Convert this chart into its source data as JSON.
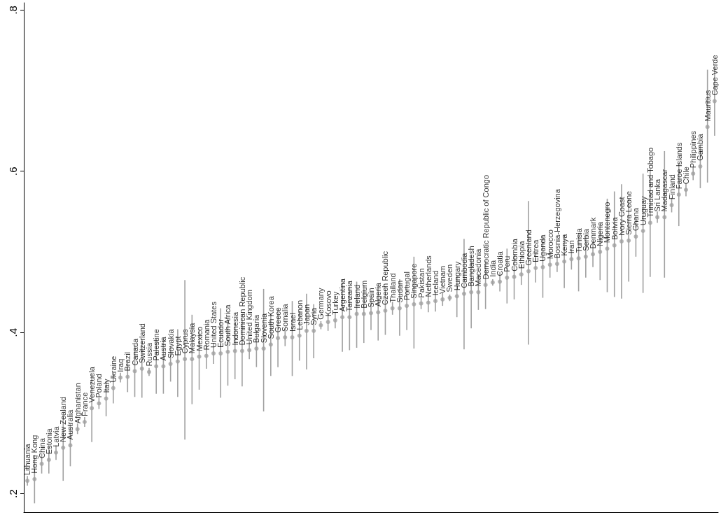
{
  "chart_data": {
    "type": "scatter",
    "categories": [
      "Lithuania",
      "Hong Kong",
      "China",
      "Estonia",
      "Latvia",
      "New Zealand",
      "Australia",
      "Afghanistan",
      "France",
      "Venezuela",
      "Poland",
      "Italy",
      "Ukraine",
      "Iraq",
      "Brazil",
      "Canada",
      "Switzerland",
      "Russia",
      "Palestine",
      "Austria",
      "Slovakia",
      "Egypt",
      "Cyprus",
      "Malaysia",
      "Mexico",
      "Romania",
      "United States",
      "Ecuador",
      "South Africa",
      "Indonesia",
      "Dominican Republic",
      "United Kingdom",
      "Bulgaria",
      "Slovenia",
      "South Korea",
      "Greece",
      "Somalia",
      "Israel",
      "Lebanon",
      "Japan",
      "Syria",
      "Germany",
      "Kosovo",
      "Turkey",
      "Argentina",
      "Tanzania",
      "Ireland",
      "Belgium",
      "Spain",
      "Algeria",
      "Czech Republic",
      "Thailand",
      "Sudan",
      "Portugal",
      "Singapore",
      "Pakistan",
      "Netherlands",
      "Iceland",
      "Vietnam",
      "Sweden",
      "Hungary",
      "Cambodia",
      "Bangladesh",
      "Macedonia",
      "Democratic Republic of Congo",
      "India",
      "Croatia",
      "Peru",
      "Colombia",
      "Ethiopia",
      "Greenland",
      "Eritrea",
      "Uganda",
      "Morocco",
      "Bosnia-Herzegovina",
      "Kenya",
      "Iran",
      "Tunisia",
      "Serbia",
      "Denmark",
      "Nigeria",
      "Montenegro",
      "Bolivia",
      "Ivory Coast",
      "Sierra Leone",
      "Ghana",
      "Uruguay",
      "Trinidad and Tobago",
      "Sri Lanka",
      "Madagascar",
      "Finland",
      "Faroe Islands",
      "Chile",
      "Philippines",
      "Gambia",
      "Mauritius",
      "Cape Verde"
    ],
    "series": [
      {
        "color": "#a0a0a0",
        "values": [
          0.216,
          0.218,
          0.237,
          0.242,
          0.251,
          0.257,
          0.26,
          0.28,
          0.289,
          0.306,
          0.312,
          0.318,
          0.331,
          0.344,
          0.345,
          0.352,
          0.355,
          0.351,
          0.358,
          0.358,
          0.361,
          0.364,
          0.367,
          0.367,
          0.37,
          0.371,
          0.374,
          0.374,
          0.376,
          0.377,
          0.377,
          0.378,
          0.38,
          0.38,
          0.385,
          0.393,
          0.394,
          0.394,
          0.396,
          0.402,
          0.402,
          0.409,
          0.413,
          0.415,
          0.419,
          0.419,
          0.423,
          0.423,
          0.424,
          0.425,
          0.427,
          0.43,
          0.43,
          0.433,
          0.435,
          0.436,
          0.437,
          0.439,
          0.441,
          0.443,
          0.445,
          0.448,
          0.45,
          0.45,
          0.459,
          0.462,
          0.463,
          0.468,
          0.469,
          0.472,
          0.476,
          0.48,
          0.481,
          0.484,
          0.485,
          0.488,
          0.491,
          0.492,
          0.494,
          0.497,
          0.5,
          0.504,
          0.508,
          0.513,
          0.514,
          0.519,
          0.526,
          0.536,
          0.543,
          0.543,
          0.558,
          0.571,
          0.577,
          0.597,
          0.606,
          0.655,
          0.687
        ],
        "errors": [
          [
            0.21,
            0.222
          ],
          [
            0.188,
            0.248
          ],
          [
            0.225,
            0.25
          ],
          [
            0.225,
            0.26
          ],
          [
            0.242,
            0.26
          ],
          [
            0.216,
            0.298
          ],
          [
            0.234,
            0.286
          ],
          [
            0.274,
            0.287
          ],
          [
            0.283,
            0.295
          ],
          [
            0.264,
            0.348
          ],
          [
            0.305,
            0.319
          ],
          [
            0.296,
            0.34
          ],
          [
            0.312,
            0.35
          ],
          [
            0.338,
            0.35
          ],
          [
            0.326,
            0.364
          ],
          [
            0.32,
            0.384
          ],
          [
            0.319,
            0.391
          ],
          [
            0.346,
            0.356
          ],
          [
            0.324,
            0.392
          ],
          [
            0.324,
            0.392
          ],
          [
            0.339,
            0.383
          ],
          [
            0.32,
            0.404
          ],
          [
            0.267,
            0.465
          ],
          [
            0.311,
            0.422
          ],
          [
            0.329,
            0.404
          ],
          [
            0.355,
            0.387
          ],
          [
            0.361,
            0.387
          ],
          [
            0.319,
            0.43
          ],
          [
            0.334,
            0.418
          ],
          [
            0.342,
            0.412
          ],
          [
            0.333,
            0.421
          ],
          [
            0.367,
            0.389
          ],
          [
            0.357,
            0.403
          ],
          [
            0.302,
            0.454
          ],
          [
            0.346,
            0.424
          ],
          [
            0.357,
            0.429
          ],
          [
            0.383,
            0.405
          ],
          [
            0.346,
            0.439
          ],
          [
            0.365,
            0.427
          ],
          [
            0.354,
            0.448
          ],
          [
            0.368,
            0.435
          ],
          [
            0.404,
            0.414
          ],
          [
            0.402,
            0.424
          ],
          [
            0.405,
            0.425
          ],
          [
            0.376,
            0.462
          ],
          [
            0.378,
            0.457
          ],
          [
            0.381,
            0.463
          ],
          [
            0.387,
            0.459
          ],
          [
            0.403,
            0.445
          ],
          [
            0.39,
            0.459
          ],
          [
            0.397,
            0.457
          ],
          [
            0.422,
            0.438
          ],
          [
            0.396,
            0.466
          ],
          [
            0.403,
            0.463
          ],
          [
            0.38,
            0.494
          ],
          [
            0.429,
            0.443
          ],
          [
            0.425,
            0.449
          ],
          [
            0.426,
            0.452
          ],
          [
            0.433,
            0.449
          ],
          [
            0.439,
            0.447
          ],
          [
            0.419,
            0.471
          ],
          [
            0.379,
            0.516
          ],
          [
            0.405,
            0.495
          ],
          [
            0.428,
            0.472
          ],
          [
            0.429,
            0.489
          ],
          [
            0.458,
            0.466
          ],
          [
            0.451,
            0.475
          ],
          [
            0.436,
            0.504
          ],
          [
            0.441,
            0.497
          ],
          [
            0.459,
            0.485
          ],
          [
            0.385,
            0.563
          ],
          [
            0.462,
            0.498
          ],
          [
            0.443,
            0.519
          ],
          [
            0.468,
            0.5
          ],
          [
            0.475,
            0.495
          ],
          [
            0.455,
            0.521
          ],
          [
            0.478,
            0.504
          ],
          [
            0.451,
            0.523
          ],
          [
            0.468,
            0.52
          ],
          [
            0.481,
            0.513
          ],
          [
            0.465,
            0.535
          ],
          [
            0.45,
            0.566
          ],
          [
            0.444,
            0.575
          ],
          [
            0.442,
            0.584
          ],
          [
            0.463,
            0.565
          ],
          [
            0.494,
            0.544
          ],
          [
            0.449,
            0.597
          ],
          [
            0.469,
            0.603
          ],
          [
            0.536,
            0.55
          ],
          [
            0.468,
            0.625
          ],
          [
            0.549,
            0.567
          ],
          [
            0.532,
            0.61
          ],
          [
            0.569,
            0.585
          ],
          [
            0.589,
            0.605
          ],
          [
            0.579,
            0.633
          ],
          [
            0.586,
            0.726
          ],
          [
            0.644,
            0.73
          ]
        ]
      }
    ],
    "ylim": [
      0.177,
      0.809
    ],
    "yticks": [
      {
        "value": 0.2,
        "label": ".2"
      },
      {
        "value": 0.4,
        "label": ".4"
      },
      {
        "value": 0.6,
        "label": ".6"
      },
      {
        "value": 0.8,
        "label": ".8"
      }
    ],
    "tick_labels": "y",
    "marker": "circle"
  }
}
